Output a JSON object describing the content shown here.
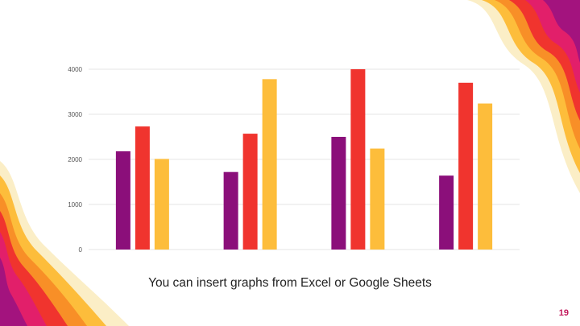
{
  "slide": {
    "caption": "You can insert graphs from Excel or Google Sheets",
    "page_number": "19"
  },
  "colors": {
    "purple": "#8b0f7a",
    "red": "#f0342e",
    "yellow": "#fdbd3b",
    "page_number": "#c2185b"
  },
  "chart_data": {
    "type": "bar",
    "categories": [
      "",
      "",
      "",
      ""
    ],
    "series": [
      {
        "values": [
          2180,
          1720,
          2500,
          1640
        ],
        "color": "#8b0f7a"
      },
      {
        "values": [
          2730,
          2570,
          4000,
          3700
        ],
        "color": "#f0342e"
      },
      {
        "values": [
          2010,
          3780,
          2240,
          3240
        ],
        "color": "#fdbd3b"
      }
    ],
    "yticks": [
      0,
      1000,
      2000,
      3000,
      4000
    ],
    "ylim": [
      0,
      4000
    ],
    "title": "",
    "xlabel": "",
    "ylabel": "",
    "grid": true,
    "legend": "none"
  }
}
